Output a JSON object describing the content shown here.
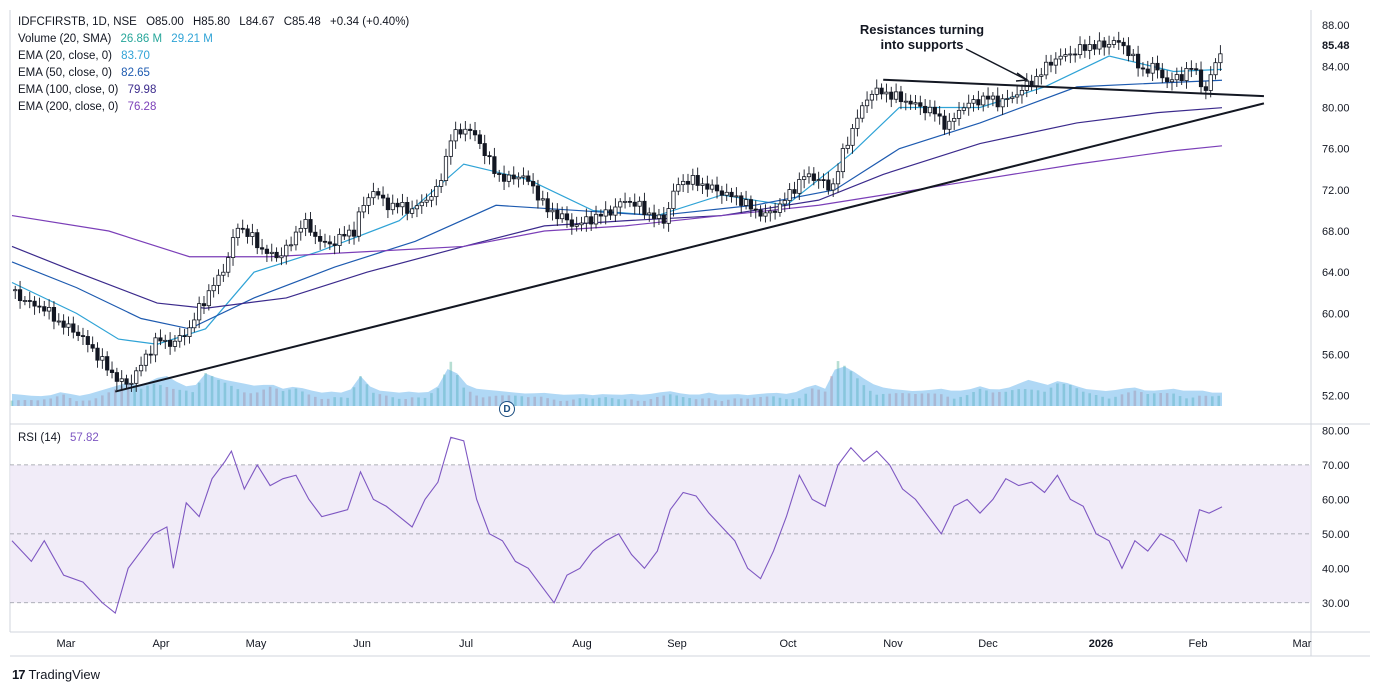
{
  "header": {
    "symbol": "IDFCFIRSTB, 1D, NSE",
    "open": "O85.00",
    "high": "H85.80",
    "low": "L84.67",
    "close": "C85.48",
    "change": "+0.34 (+0.40%)"
  },
  "indicators": [
    {
      "label": "Volume (20, SMA)",
      "value": "26.86 M",
      "value2": "29.21 M",
      "color": "#26a69a"
    },
    {
      "label": "EMA (20, close, 0)",
      "value": "83.70",
      "color": "#2fa3d6"
    },
    {
      "label": "EMA (50, close, 0)",
      "value": "82.65",
      "color": "#1e5bb0"
    },
    {
      "label": "EMA (100, close, 0)",
      "value": "79.98",
      "color": "#3b2a8c"
    },
    {
      "label": "EMA (200, close, 0)",
      "value": "76.28",
      "color": "#7b3fb8"
    }
  ],
  "rsi": {
    "label": "RSI (14)",
    "value": "57.82",
    "color": "#7e57c2"
  },
  "annotation": {
    "line1": "Resistances turning",
    "line2": "into supports"
  },
  "last_price_label": "85.48",
  "badge": "D",
  "branding": "TradingView",
  "chart_data": {
    "type": "candlestick",
    "price_axis": {
      "ticks": [
        "88.00",
        "84.00",
        "80.00",
        "76.00",
        "72.00",
        "68.00",
        "64.00",
        "60.00",
        "56.00",
        "52.00"
      ],
      "ylim": [
        51,
        88.5
      ]
    },
    "rsi_axis": {
      "ticks": [
        "80.00",
        "70.00",
        "60.00",
        "50.00",
        "40.00",
        "30.00"
      ],
      "bands": [
        30,
        50,
        70
      ],
      "ylim": [
        25,
        81
      ]
    },
    "x_labels": [
      "Mar",
      "Apr",
      "May",
      "Jun",
      "Jul",
      "Aug",
      "Sep",
      "Oct",
      "Nov",
      "Dec",
      "2026",
      "Feb",
      "Mar"
    ],
    "close_series": [
      [
        0,
        62.2
      ],
      [
        5,
        61.0
      ],
      [
        10,
        60.5
      ],
      [
        15,
        59.0
      ],
      [
        20,
        58.2
      ],
      [
        25,
        56.5
      ],
      [
        30,
        54.5
      ],
      [
        33,
        53.5
      ],
      [
        36,
        53.0
      ],
      [
        40,
        55.0
      ],
      [
        45,
        57.5
      ],
      [
        50,
        57.0
      ],
      [
        55,
        58.5
      ],
      [
        58,
        60.5
      ],
      [
        62,
        62.5
      ],
      [
        66,
        64.5
      ],
      [
        70,
        68.5
      ],
      [
        74,
        67.5
      ],
      [
        78,
        66.0
      ],
      [
        82,
        65.5
      ],
      [
        86,
        66.5
      ],
      [
        90,
        69.0
      ],
      [
        94,
        67.5
      ],
      [
        98,
        66.5
      ],
      [
        102,
        67.5
      ],
      [
        106,
        68.0
      ],
      [
        108,
        70.0
      ],
      [
        112,
        72.0
      ],
      [
        116,
        70.5
      ],
      [
        120,
        70.5
      ],
      [
        124,
        70.0
      ],
      [
        128,
        71.0
      ],
      [
        132,
        72.0
      ],
      [
        136,
        77.0
      ],
      [
        140,
        78.0
      ],
      [
        143,
        77.5
      ],
      [
        146,
        76.0
      ],
      [
        150,
        73.5
      ],
      [
        154,
        73.0
      ],
      [
        158,
        73.5
      ],
      [
        162,
        72.0
      ],
      [
        166,
        70.0
      ],
      [
        170,
        69.5
      ],
      [
        174,
        68.5
      ],
      [
        178,
        69.0
      ],
      [
        182,
        69.5
      ],
      [
        186,
        70.0
      ],
      [
        190,
        71.0
      ],
      [
        194,
        70.5
      ],
      [
        198,
        69.5
      ],
      [
        202,
        69.0
      ],
      [
        206,
        72.5
      ],
      [
        210,
        73.0
      ],
      [
        214,
        72.5
      ],
      [
        218,
        72.0
      ],
      [
        222,
        71.5
      ],
      [
        226,
        71.0
      ],
      [
        230,
        70.0
      ],
      [
        234,
        69.5
      ],
      [
        238,
        70.5
      ],
      [
        242,
        72.0
      ],
      [
        246,
        73.5
      ],
      [
        250,
        73.0
      ],
      [
        254,
        72.0
      ],
      [
        258,
        76.0
      ],
      [
        262,
        79.0
      ],
      [
        266,
        81.5
      ],
      [
        270,
        81.5
      ],
      [
        274,
        81.0
      ],
      [
        278,
        80.5
      ],
      [
        282,
        80.0
      ],
      [
        286,
        79.5
      ],
      [
        290,
        78.0
      ],
      [
        294,
        80.0
      ],
      [
        298,
        80.5
      ],
      [
        302,
        81.0
      ],
      [
        306,
        80.5
      ],
      [
        310,
        81.0
      ],
      [
        314,
        82.0
      ],
      [
        318,
        83.0
      ],
      [
        322,
        84.5
      ],
      [
        326,
        85.0
      ],
      [
        330,
        85.5
      ],
      [
        334,
        86.0
      ],
      [
        338,
        86.0
      ],
      [
        342,
        86.5
      ],
      [
        346,
        85.5
      ],
      [
        350,
        83.5
      ],
      [
        354,
        84.0
      ],
      [
        358,
        82.5
      ],
      [
        362,
        83.0
      ],
      [
        366,
        84.0
      ],
      [
        370,
        81.5
      ],
      [
        373,
        84.5
      ],
      [
        375,
        85.48
      ]
    ],
    "ema_20": [
      [
        0,
        63.0
      ],
      [
        20,
        60.0
      ],
      [
        33,
        57.5
      ],
      [
        45,
        57.0
      ],
      [
        60,
        58.5
      ],
      [
        75,
        64.0
      ],
      [
        95,
        66.0
      ],
      [
        120,
        69.0
      ],
      [
        140,
        74.5
      ],
      [
        160,
        73.0
      ],
      [
        180,
        70.0
      ],
      [
        200,
        69.5
      ],
      [
        220,
        71.5
      ],
      [
        240,
        70.5
      ],
      [
        260,
        75.5
      ],
      [
        275,
        80.0
      ],
      [
        300,
        80.0
      ],
      [
        320,
        82.0
      ],
      [
        340,
        85.0
      ],
      [
        360,
        83.5
      ],
      [
        375,
        83.7
      ]
    ],
    "ema_50": [
      [
        0,
        65.0
      ],
      [
        20,
        62.5
      ],
      [
        40,
        59.5
      ],
      [
        55,
        58.5
      ],
      [
        75,
        61.5
      ],
      [
        100,
        64.5
      ],
      [
        125,
        67.0
      ],
      [
        150,
        70.5
      ],
      [
        175,
        70.0
      ],
      [
        200,
        69.5
      ],
      [
        230,
        70.5
      ],
      [
        255,
        72.0
      ],
      [
        275,
        76.0
      ],
      [
        300,
        78.5
      ],
      [
        330,
        82.0
      ],
      [
        350,
        82.3
      ],
      [
        375,
        82.65
      ]
    ],
    "ema_100": [
      [
        0,
        66.5
      ],
      [
        20,
        64.0
      ],
      [
        45,
        61.0
      ],
      [
        60,
        60.5
      ],
      [
        85,
        61.5
      ],
      [
        110,
        64.0
      ],
      [
        140,
        66.5
      ],
      [
        165,
        68.5
      ],
      [
        190,
        69.0
      ],
      [
        220,
        69.5
      ],
      [
        250,
        71.0
      ],
      [
        270,
        73.5
      ],
      [
        300,
        76.5
      ],
      [
        330,
        78.5
      ],
      [
        355,
        79.5
      ],
      [
        375,
        79.98
      ]
    ],
    "ema_200": [
      [
        0,
        69.5
      ],
      [
        30,
        68.0
      ],
      [
        55,
        65.5
      ],
      [
        80,
        65.5
      ],
      [
        110,
        66.0
      ],
      [
        140,
        66.5
      ],
      [
        165,
        68.0
      ],
      [
        190,
        68.5
      ],
      [
        220,
        69.5
      ],
      [
        250,
        70.5
      ],
      [
        270,
        71.5
      ],
      [
        300,
        73.0
      ],
      [
        330,
        74.5
      ],
      [
        360,
        75.8
      ],
      [
        375,
        76.28
      ]
    ],
    "rsi_series": [
      [
        0,
        48
      ],
      [
        6,
        42
      ],
      [
        10,
        48
      ],
      [
        16,
        38
      ],
      [
        22,
        36
      ],
      [
        28,
        30
      ],
      [
        32,
        27
      ],
      [
        36,
        40
      ],
      [
        40,
        45
      ],
      [
        44,
        50
      ],
      [
        48,
        52
      ],
      [
        50,
        40
      ],
      [
        54,
        59
      ],
      [
        58,
        55
      ],
      [
        62,
        66
      ],
      [
        66,
        71
      ],
      [
        68,
        74
      ],
      [
        72,
        63
      ],
      [
        76,
        70
      ],
      [
        80,
        64
      ],
      [
        84,
        66
      ],
      [
        88,
        67
      ],
      [
        92,
        60
      ],
      [
        96,
        55
      ],
      [
        100,
        56
      ],
      [
        104,
        57
      ],
      [
        108,
        68
      ],
      [
        112,
        60
      ],
      [
        116,
        58
      ],
      [
        120,
        55
      ],
      [
        124,
        52
      ],
      [
        128,
        60
      ],
      [
        132,
        65
      ],
      [
        136,
        78
      ],
      [
        140,
        77
      ],
      [
        144,
        60
      ],
      [
        148,
        50
      ],
      [
        152,
        48
      ],
      [
        156,
        42
      ],
      [
        160,
        40
      ],
      [
        164,
        35
      ],
      [
        168,
        30
      ],
      [
        172,
        38
      ],
      [
        176,
        40
      ],
      [
        180,
        45
      ],
      [
        184,
        48
      ],
      [
        188,
        50
      ],
      [
        192,
        44
      ],
      [
        196,
        40
      ],
      [
        200,
        45
      ],
      [
        204,
        57
      ],
      [
        208,
        62
      ],
      [
        212,
        61
      ],
      [
        216,
        56
      ],
      [
        220,
        52
      ],
      [
        224,
        48
      ],
      [
        228,
        40
      ],
      [
        232,
        37
      ],
      [
        236,
        45
      ],
      [
        240,
        55
      ],
      [
        244,
        67
      ],
      [
        248,
        60
      ],
      [
        252,
        58
      ],
      [
        256,
        70
      ],
      [
        260,
        75
      ],
      [
        264,
        71
      ],
      [
        268,
        74
      ],
      [
        272,
        70
      ],
      [
        276,
        63
      ],
      [
        280,
        60
      ],
      [
        284,
        55
      ],
      [
        288,
        50
      ],
      [
        292,
        58
      ],
      [
        296,
        60
      ],
      [
        300,
        56
      ],
      [
        304,
        60
      ],
      [
        308,
        66
      ],
      [
        312,
        64
      ],
      [
        316,
        65
      ],
      [
        320,
        62
      ],
      [
        324,
        67
      ],
      [
        328,
        60
      ],
      [
        332,
        58
      ],
      [
        336,
        50
      ],
      [
        340,
        48
      ],
      [
        344,
        40
      ],
      [
        348,
        48
      ],
      [
        352,
        45
      ],
      [
        356,
        50
      ],
      [
        360,
        48
      ],
      [
        364,
        42
      ],
      [
        368,
        57
      ],
      [
        371,
        56
      ],
      [
        375,
        57.82
      ]
    ],
    "volume": [
      [
        0,
        6
      ],
      [
        4,
        5
      ],
      [
        8,
        4
      ],
      [
        12,
        5
      ],
      [
        16,
        8
      ],
      [
        20,
        4
      ],
      [
        24,
        6
      ],
      [
        28,
        9
      ],
      [
        32,
        12
      ],
      [
        36,
        15
      ],
      [
        40,
        12
      ],
      [
        44,
        18
      ],
      [
        48,
        20
      ],
      [
        52,
        14
      ],
      [
        56,
        10
      ],
      [
        60,
        22
      ],
      [
        64,
        18
      ],
      [
        68,
        16
      ],
      [
        72,
        14
      ],
      [
        76,
        12
      ],
      [
        80,
        14
      ],
      [
        84,
        10
      ],
      [
        88,
        12
      ],
      [
        92,
        9
      ],
      [
        96,
        7
      ],
      [
        100,
        8
      ],
      [
        104,
        6
      ],
      [
        108,
        20
      ],
      [
        112,
        9
      ],
      [
        116,
        8
      ],
      [
        120,
        7
      ],
      [
        124,
        8
      ],
      [
        128,
        6
      ],
      [
        132,
        12
      ],
      [
        136,
        30
      ],
      [
        140,
        14
      ],
      [
        144,
        10
      ],
      [
        148,
        9
      ],
      [
        152,
        8
      ],
      [
        156,
        7
      ],
      [
        160,
        6
      ],
      [
        164,
        7
      ],
      [
        168,
        6
      ],
      [
        172,
        5
      ],
      [
        176,
        6
      ],
      [
        180,
        5
      ],
      [
        184,
        6
      ],
      [
        188,
        5
      ],
      [
        192,
        6
      ],
      [
        196,
        5
      ],
      [
        200,
        7
      ],
      [
        204,
        8
      ],
      [
        208,
        6
      ],
      [
        212,
        5
      ],
      [
        216,
        7
      ],
      [
        220,
        5
      ],
      [
        224,
        6
      ],
      [
        228,
        5
      ],
      [
        232,
        6
      ],
      [
        236,
        7
      ],
      [
        240,
        6
      ],
      [
        244,
        8
      ],
      [
        248,
        14
      ],
      [
        252,
        10
      ],
      [
        256,
        30
      ],
      [
        260,
        25
      ],
      [
        264,
        18
      ],
      [
        268,
        12
      ],
      [
        272,
        10
      ],
      [
        276,
        9
      ],
      [
        280,
        8
      ],
      [
        284,
        9
      ],
      [
        288,
        10
      ],
      [
        292,
        8
      ],
      [
        296,
        9
      ],
      [
        300,
        12
      ],
      [
        304,
        9
      ],
      [
        308,
        10
      ],
      [
        312,
        14
      ],
      [
        316,
        18
      ],
      [
        320,
        12
      ],
      [
        324,
        16
      ],
      [
        328,
        14
      ],
      [
        332,
        10
      ],
      [
        336,
        9
      ],
      [
        340,
        8
      ],
      [
        344,
        10
      ],
      [
        348,
        11
      ],
      [
        352,
        8
      ],
      [
        356,
        9
      ],
      [
        360,
        10
      ],
      [
        364,
        8
      ],
      [
        368,
        9
      ],
      [
        372,
        7
      ],
      [
        375,
        7
      ]
    ],
    "trendlines": [
      {
        "name": "rising support",
        "from": [
          32,
          52.4
        ],
        "to": [
          388,
          80.4
        ]
      },
      {
        "name": "resistance turned support",
        "from": [
          270,
          82.7
        ],
        "to": [
          388,
          81.1
        ]
      }
    ],
    "grid": false,
    "legend_position": "top-left"
  }
}
